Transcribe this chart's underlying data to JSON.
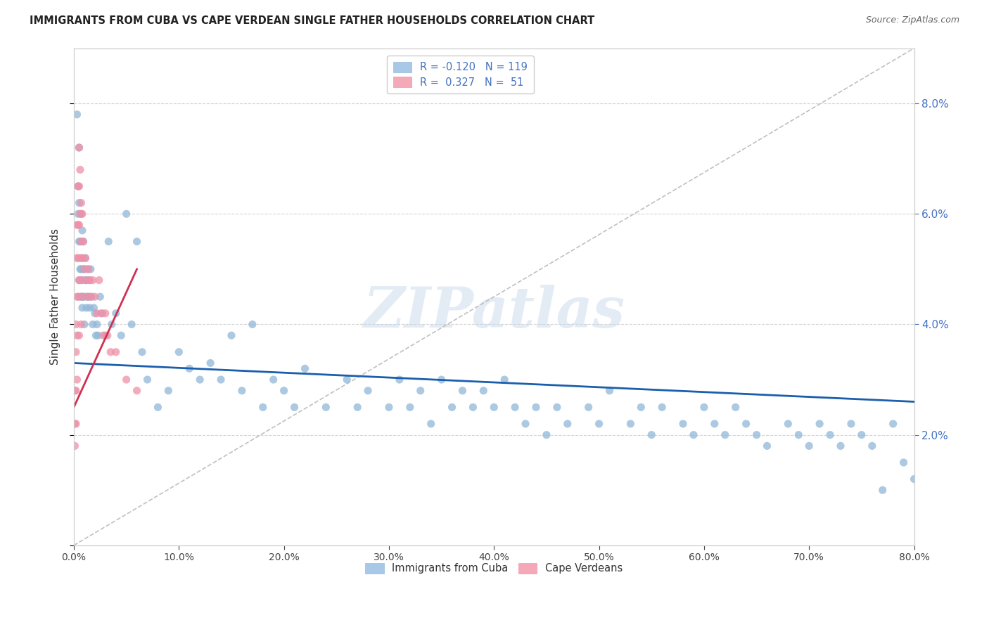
{
  "title": "IMMIGRANTS FROM CUBA VS CAPE VERDEAN SINGLE FATHER HOUSEHOLDS CORRELATION CHART",
  "source": "Source: ZipAtlas.com",
  "ylabel": "Single Father Households",
  "legend_labels": [
    "Immigrants from Cuba",
    "Cape Verdeans"
  ],
  "legend_r_n": [
    "R = -0.120   N = 119",
    "R =  0.327   N =  51"
  ],
  "blue_color": "#a8c8e8",
  "pink_color": "#f4a8b8",
  "blue_dot_color": "#90b8d8",
  "pink_dot_color": "#f090a8",
  "trendline_blue_color": "#1a5fad",
  "trendline_pink_color": "#d03050",
  "trendline_diag_color": "#c0c0c0",
  "watermark": "ZIPatlas",
  "background_color": "#ffffff",
  "grid_color": "#d0d0d0",
  "right_axis_color": "#4472c4",
  "xlim": [
    0.0,
    0.8
  ],
  "ylim": [
    0.0,
    0.09
  ],
  "figsize": [
    14.06,
    8.92
  ],
  "cuba_x": [
    0.003,
    0.004,
    0.004,
    0.005,
    0.005,
    0.005,
    0.005,
    0.006,
    0.006,
    0.006,
    0.007,
    0.007,
    0.007,
    0.007,
    0.008,
    0.008,
    0.008,
    0.008,
    0.009,
    0.009,
    0.009,
    0.01,
    0.01,
    0.01,
    0.011,
    0.011,
    0.012,
    0.012,
    0.013,
    0.013,
    0.014,
    0.015,
    0.015,
    0.016,
    0.017,
    0.018,
    0.019,
    0.02,
    0.021,
    0.022,
    0.023,
    0.025,
    0.027,
    0.03,
    0.033,
    0.036,
    0.04,
    0.045,
    0.05,
    0.055,
    0.06,
    0.065,
    0.07,
    0.08,
    0.09,
    0.1,
    0.11,
    0.12,
    0.13,
    0.14,
    0.15,
    0.16,
    0.17,
    0.18,
    0.19,
    0.2,
    0.21,
    0.22,
    0.24,
    0.26,
    0.27,
    0.28,
    0.3,
    0.31,
    0.32,
    0.33,
    0.34,
    0.35,
    0.36,
    0.37,
    0.38,
    0.39,
    0.4,
    0.41,
    0.42,
    0.43,
    0.44,
    0.45,
    0.46,
    0.47,
    0.49,
    0.5,
    0.51,
    0.53,
    0.54,
    0.55,
    0.56,
    0.58,
    0.59,
    0.6,
    0.61,
    0.62,
    0.63,
    0.64,
    0.65,
    0.66,
    0.68,
    0.69,
    0.7,
    0.71,
    0.72,
    0.73,
    0.74,
    0.75,
    0.76,
    0.77,
    0.78,
    0.79,
    0.8
  ],
  "cuba_y": [
    0.078,
    0.06,
    0.065,
    0.072,
    0.055,
    0.048,
    0.062,
    0.055,
    0.05,
    0.045,
    0.06,
    0.055,
    0.05,
    0.045,
    0.057,
    0.052,
    0.048,
    0.043,
    0.055,
    0.05,
    0.045,
    0.05,
    0.045,
    0.04,
    0.052,
    0.048,
    0.048,
    0.043,
    0.05,
    0.045,
    0.045,
    0.048,
    0.043,
    0.05,
    0.045,
    0.04,
    0.043,
    0.042,
    0.038,
    0.04,
    0.038,
    0.045,
    0.042,
    0.038,
    0.055,
    0.04,
    0.042,
    0.038,
    0.06,
    0.04,
    0.055,
    0.035,
    0.03,
    0.025,
    0.028,
    0.035,
    0.032,
    0.03,
    0.033,
    0.03,
    0.038,
    0.028,
    0.04,
    0.025,
    0.03,
    0.028,
    0.025,
    0.032,
    0.025,
    0.03,
    0.025,
    0.028,
    0.025,
    0.03,
    0.025,
    0.028,
    0.022,
    0.03,
    0.025,
    0.028,
    0.025,
    0.028,
    0.025,
    0.03,
    0.025,
    0.022,
    0.025,
    0.02,
    0.025,
    0.022,
    0.025,
    0.022,
    0.028,
    0.022,
    0.025,
    0.02,
    0.025,
    0.022,
    0.02,
    0.025,
    0.022,
    0.02,
    0.025,
    0.022,
    0.02,
    0.018,
    0.022,
    0.02,
    0.018,
    0.022,
    0.02,
    0.018,
    0.022,
    0.02,
    0.018,
    0.01,
    0.022,
    0.015,
    0.012
  ],
  "verde_x": [
    0.001,
    0.001,
    0.001,
    0.002,
    0.002,
    0.002,
    0.002,
    0.003,
    0.003,
    0.003,
    0.003,
    0.003,
    0.004,
    0.004,
    0.004,
    0.004,
    0.005,
    0.005,
    0.005,
    0.005,
    0.005,
    0.006,
    0.006,
    0.006,
    0.007,
    0.007,
    0.007,
    0.007,
    0.008,
    0.008,
    0.008,
    0.009,
    0.01,
    0.011,
    0.012,
    0.013,
    0.014,
    0.015,
    0.016,
    0.018,
    0.02,
    0.022,
    0.024,
    0.026,
    0.028,
    0.03,
    0.032,
    0.035,
    0.04,
    0.05,
    0.06
  ],
  "verde_y": [
    0.028,
    0.022,
    0.018,
    0.04,
    0.035,
    0.028,
    0.022,
    0.058,
    0.052,
    0.045,
    0.038,
    0.03,
    0.065,
    0.058,
    0.052,
    0.045,
    0.072,
    0.065,
    0.058,
    0.048,
    0.038,
    0.068,
    0.06,
    0.052,
    0.062,
    0.055,
    0.048,
    0.04,
    0.06,
    0.052,
    0.045,
    0.055,
    0.05,
    0.052,
    0.048,
    0.045,
    0.05,
    0.048,
    0.045,
    0.048,
    0.045,
    0.042,
    0.048,
    0.042,
    0.038,
    0.042,
    0.038,
    0.035,
    0.035,
    0.03,
    0.028
  ]
}
